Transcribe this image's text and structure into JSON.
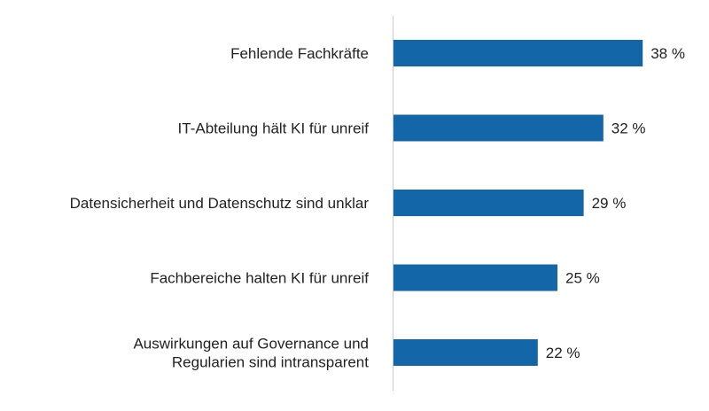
{
  "chart_data": {
    "type": "bar",
    "orientation": "horizontal",
    "categories": [
      [
        "Fehlende Fachkräfte"
      ],
      [
        "IT-Abteilung hält KI für unreif"
      ],
      [
        "Datensicherheit und Datenschutz sind unklar"
      ],
      [
        "Fachbereiche halten KI für unreif"
      ],
      [
        "Auswirkungen auf Governance und",
        "Regularien sind intransparent"
      ]
    ],
    "values": [
      38,
      32,
      29,
      25,
      22
    ],
    "value_labels": [
      "38 %",
      "32 %",
      "29 %",
      "25 %",
      "22 %"
    ],
    "bar_color": "#1366a8",
    "axis_line_color": "#cccccc",
    "grid": false,
    "legend": "none"
  }
}
